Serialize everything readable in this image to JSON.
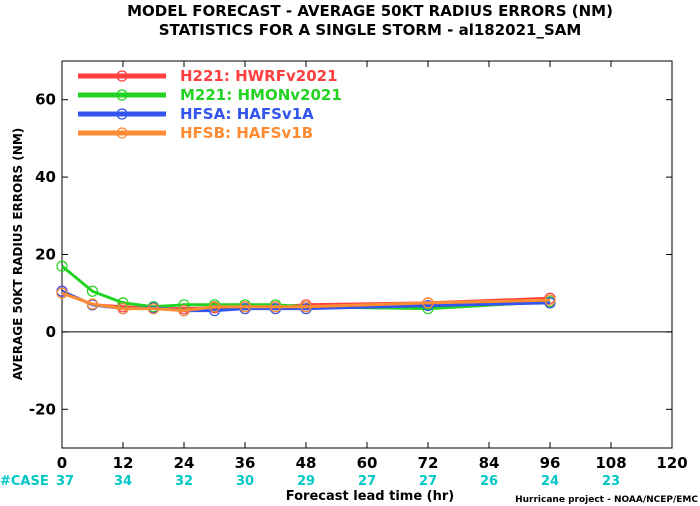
{
  "title_line1": "MODEL FORECAST - AVERAGE 50KT RADIUS ERRORS (NM)",
  "title_line2": "STATISTICS FOR A SINGLE STORM - al182021_SAM",
  "credit": "Hurricane project - NOAA/NCEP/EMC",
  "case_label": "#CASE",
  "case_color": "#00c8c8",
  "cases": [
    {
      "x": 0,
      "n": "37"
    },
    {
      "x": 12,
      "n": "34"
    },
    {
      "x": 24,
      "n": "32"
    },
    {
      "x": 36,
      "n": "30"
    },
    {
      "x": 48,
      "n": "29"
    },
    {
      "x": 60,
      "n": "27"
    },
    {
      "x": 72,
      "n": "27"
    },
    {
      "x": 84,
      "n": "26"
    },
    {
      "x": 96,
      "n": "24"
    },
    {
      "x": 108,
      "n": "23"
    }
  ],
  "chart_data": {
    "type": "line",
    "title": "MODEL FORECAST - AVERAGE 50KT RADIUS ERRORS (NM)",
    "subtitle": "STATISTICS FOR A SINGLE STORM - al182021_SAM",
    "xlabel": "Forecast lead time (hr)",
    "ylabel": "AVERAGE 50KT RADIUS ERRORS (NM)",
    "xlim": [
      0,
      120
    ],
    "ylim": [
      -30,
      70
    ],
    "xticks": [
      0,
      12,
      24,
      36,
      48,
      60,
      72,
      84,
      96,
      108,
      120
    ],
    "yticks": [
      -20,
      0,
      20,
      40,
      60
    ],
    "legend_position": "top-left",
    "grid": false,
    "zero_line": true,
    "x": [
      0,
      6,
      12,
      18,
      24,
      30,
      36,
      42,
      48,
      72,
      96
    ],
    "series": [
      {
        "name": "H221: HWRFv2021",
        "color": "#ff4040",
        "values": [
          10.5,
          7.0,
          6.5,
          6.0,
          6.0,
          6.2,
          6.5,
          6.5,
          7.0,
          7.5,
          8.7
        ]
      },
      {
        "name": "M221: HMONv2021",
        "color": "#22d322",
        "values": [
          17.0,
          10.5,
          7.5,
          6.5,
          7.0,
          7.0,
          7.0,
          7.0,
          6.5,
          6.0,
          7.8
        ]
      },
      {
        "name": "HFSA: HAFSv1A",
        "color": "#3355ee",
        "values": [
          10.5,
          7.0,
          6.0,
          6.2,
          5.5,
          5.5,
          6.0,
          6.0,
          6.0,
          6.8,
          7.5
        ]
      },
      {
        "name": "HFSB: HAFSv1B",
        "color": "#ff8c33",
        "values": [
          10.0,
          7.2,
          6.0,
          6.0,
          5.5,
          6.5,
          6.5,
          6.5,
          6.5,
          7.5,
          8.2
        ]
      }
    ]
  }
}
